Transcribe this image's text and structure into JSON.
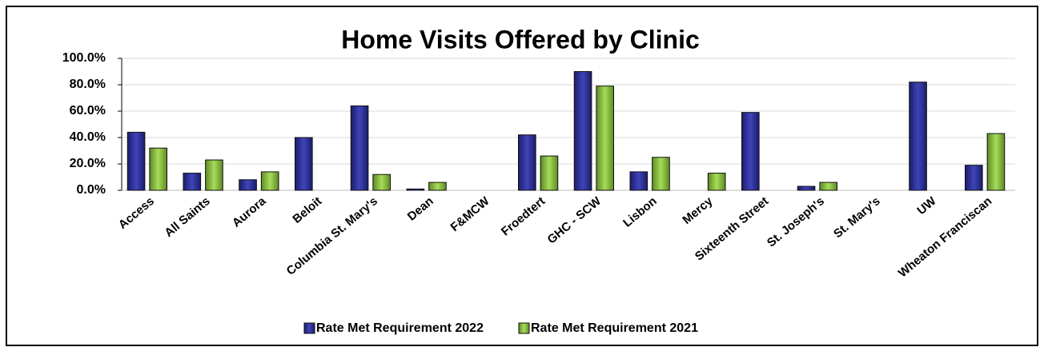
{
  "chart_data": {
    "type": "bar",
    "title": "Home Visits Offered by Clinic",
    "categories": [
      "Access",
      "All Saints",
      "Aurora",
      "Beloit",
      "Columbia St. Mary's",
      "Dean",
      "F&MCW",
      "Froedtert",
      "GHC - SCW",
      "Lisbon",
      "Mercy",
      "Sixteenth Street",
      "St. Joseph's",
      "St. Mary's",
      "UW",
      "Wheaton Franciscan"
    ],
    "series": [
      {
        "name": "Rate Met Requirement 2022",
        "color": "#2e3192",
        "values": [
          44,
          13,
          8,
          40,
          64,
          1,
          0,
          42,
          90,
          14,
          0,
          59,
          3,
          0,
          82,
          19
        ]
      },
      {
        "name": "Rate Met Requirement 2021",
        "color": "#8dc63f",
        "values": [
          32,
          23,
          14,
          0,
          12,
          6,
          0,
          26,
          79,
          25,
          13,
          0,
          6,
          0,
          0,
          43
        ]
      }
    ],
    "ylim": [
      0,
      100
    ],
    "yticks": [
      {
        "value": 0,
        "label": "0.0%"
      },
      {
        "value": 20,
        "label": "20.0%"
      },
      {
        "value": 40,
        "label": "40.0%"
      },
      {
        "value": 60,
        "label": "60.0%"
      },
      {
        "value": 80,
        "label": "80.0%"
      },
      {
        "value": 100,
        "label": "100.0%"
      }
    ],
    "grid": true,
    "legend": "bottom"
  }
}
